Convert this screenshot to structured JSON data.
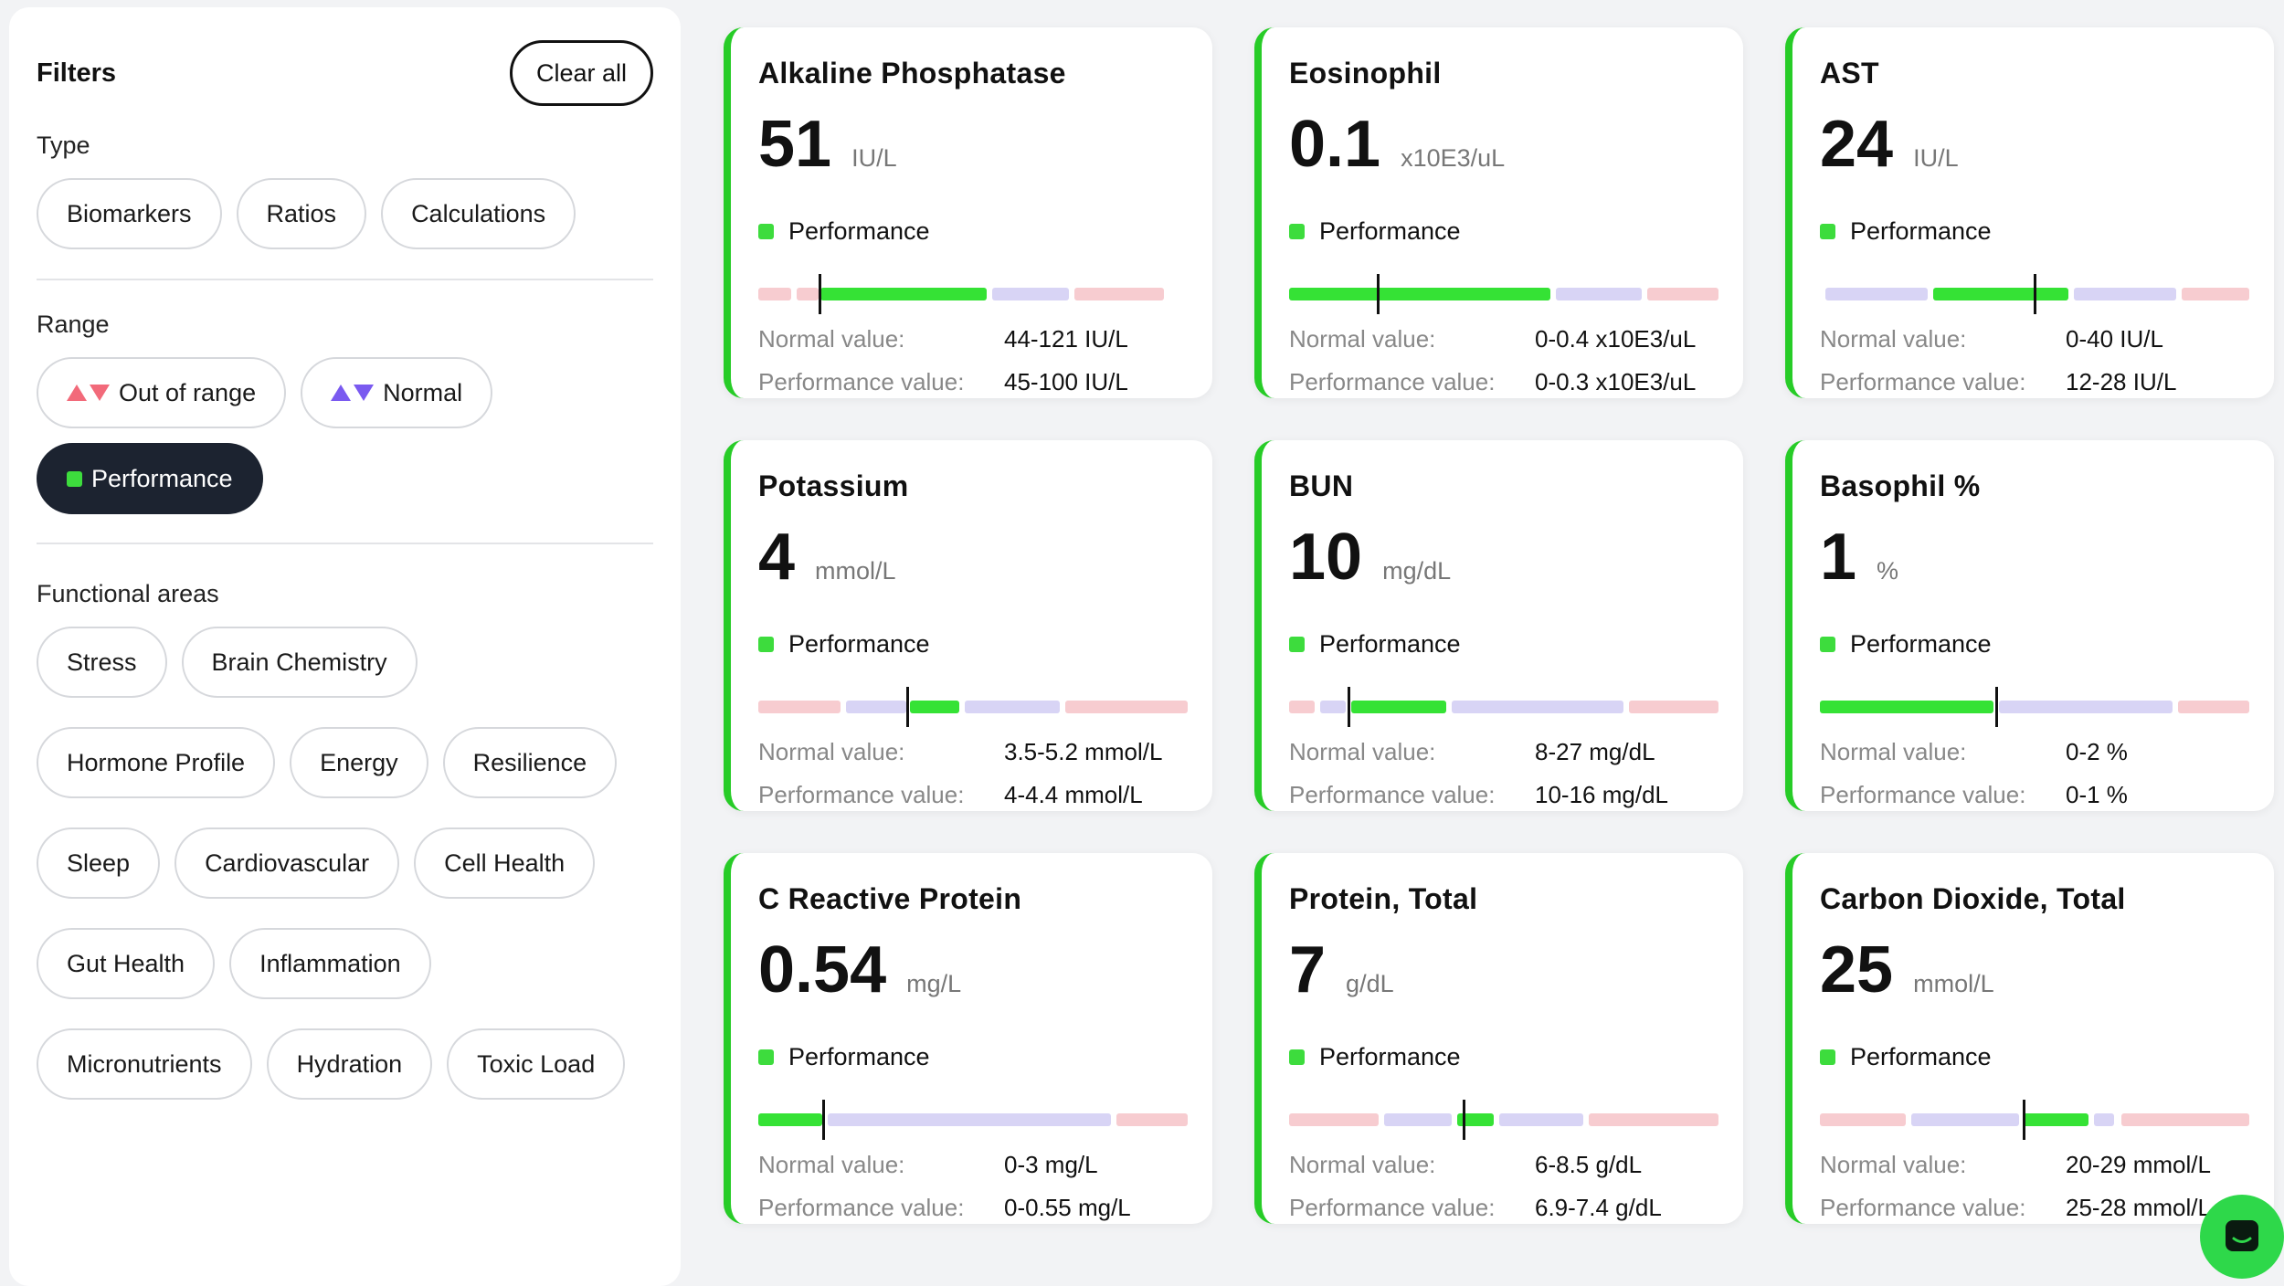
{
  "filters": {
    "title": "Filters",
    "clear_all": "Clear all",
    "type": {
      "label": "Type",
      "chips": [
        "Biomarkers",
        "Ratios",
        "Calculations"
      ]
    },
    "range": {
      "label": "Range",
      "out_of_range": "Out of range",
      "normal": "Normal",
      "performance": "Performance",
      "out_of_range_color": "#f26a7a",
      "normal_color": "#7a5af0",
      "performance_color": "#3ddc3d"
    },
    "functional_areas": {
      "label": "Functional areas",
      "chips": [
        "Stress",
        "Brain Chemistry",
        "Hormone Profile",
        "Energy",
        "Resilience",
        "Sleep",
        "Cardiovascular",
        "Cell Health",
        "Gut Health",
        "Inflammation",
        "Micronutrients",
        "Hydration",
        "Toxic Load"
      ]
    }
  },
  "labels": {
    "performance": "Performance",
    "normal_value": "Normal value:",
    "performance_value": "Performance value:"
  },
  "colors": {
    "accent_green": "#27cc27",
    "out_of_range": "#f7ccd0",
    "normal": "#d8d4f5",
    "performance": "#35e235"
  },
  "cards": [
    {
      "name": "Alkaline Phosphatase",
      "value": "51",
      "unit": "IU/L",
      "normal": "44-121 IU/L",
      "performance": "45-100 IU/L"
    },
    {
      "name": "Eosinophil",
      "value": "0.1",
      "unit": "x10E3/uL",
      "normal": "0-0.4 x10E3/uL",
      "performance": "0-0.3 x10E3/uL"
    },
    {
      "name": "AST",
      "value": "24",
      "unit": "IU/L",
      "normal": "0-40 IU/L",
      "performance": "12-28 IU/L"
    },
    {
      "name": "Potassium",
      "value": "4",
      "unit": "mmol/L",
      "normal": "3.5-5.2 mmol/L",
      "performance": "4-4.4 mmol/L"
    },
    {
      "name": "BUN",
      "value": "10",
      "unit": "mg/dL",
      "normal": "8-27 mg/dL",
      "performance": "10-16 mg/dL"
    },
    {
      "name": "Basophil %",
      "value": "1",
      "unit": "%",
      "normal": "0-2 %",
      "performance": "0-1 %"
    },
    {
      "name": "C Reactive Protein",
      "value": "0.54",
      "unit": "mg/L",
      "normal": "0-3 mg/L",
      "performance": "0-0.55 mg/L"
    },
    {
      "name": "Protein, Total",
      "value": "7",
      "unit": "g/dL",
      "normal": "6-8.5 g/dL",
      "performance": "6.9-7.4 g/dL"
    },
    {
      "name": "Carbon Dioxide, Total",
      "value": "25",
      "unit": "mmol/L",
      "normal": "20-29 mmol/L",
      "performance": "25-28 mmol/L"
    }
  ],
  "chat": {
    "icon": "chat-icon"
  }
}
